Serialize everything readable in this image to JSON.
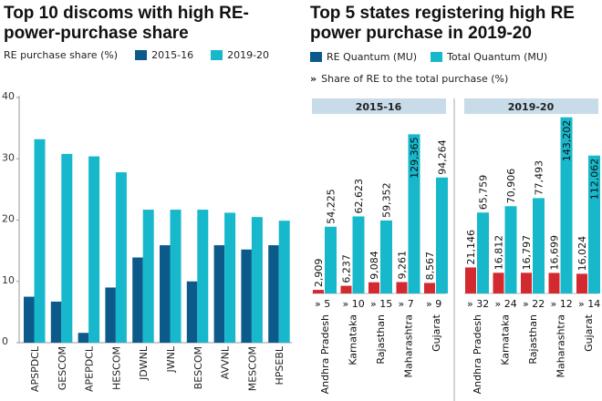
{
  "colors": {
    "dark": "#0b5a8a",
    "cyan": "#17b8cc",
    "red": "#d32a30",
    "header": "#c8dbe9"
  },
  "chart_data": [
    {
      "type": "bar",
      "title": "Top 10 discoms with high RE-power-purchase share",
      "ylabel": "RE purchase share (%)",
      "ylim": [
        0,
        40
      ],
      "yticks": [
        0,
        10,
        20,
        30,
        40
      ],
      "categories": [
        "APSPDCL",
        "GESCOM",
        "APEPDCL",
        "HESCOM",
        "JDWNL",
        "JWNL",
        "BESCOM",
        "AVVNL",
        "MESCOM",
        "HPSEBL"
      ],
      "series": [
        {
          "name": "2015-16",
          "color": "#0b5a8a",
          "values": [
            7.5,
            6.7,
            1.6,
            9.0,
            13.9,
            15.9,
            10.0,
            15.9,
            15.2,
            15.9
          ]
        },
        {
          "name": "2019-20",
          "color": "#17b8cc",
          "values": [
            33.2,
            30.8,
            30.4,
            27.8,
            21.7,
            21.7,
            21.7,
            21.2,
            20.5,
            19.9
          ]
        }
      ],
      "legend": "top"
    },
    {
      "type": "bar",
      "title": "Top 5 states registering high RE power purchase in 2019-20",
      "legend_share": "Share of RE to the total purchase (%)",
      "series_names": [
        "RE Quantum (MU)",
        "Total Quantum (MU)"
      ],
      "panels": [
        {
          "label": "2015-16",
          "categories": [
            "Andhra Pradesh",
            "Karnataka",
            "Rajasthan",
            "Maharashtra",
            "Gujarat"
          ],
          "re": [
            2909,
            6237,
            9084,
            9261,
            8567
          ],
          "re_labels": [
            "2,909",
            "6,237",
            "9,084",
            "9,261",
            "8,567"
          ],
          "total": [
            54225,
            62623,
            59352,
            129365,
            94264
          ],
          "total_labels": [
            "54,225",
            "62,623",
            "59,352",
            "129,365",
            "94,264"
          ],
          "share": [
            "5",
            "10",
            "15",
            "7",
            "9"
          ]
        },
        {
          "label": "2019-20",
          "categories": [
            "Andhra Pradesh",
            "Karnataka",
            "Rajasthan",
            "Maharashtra",
            "Gujarat"
          ],
          "re": [
            21146,
            16812,
            16797,
            16699,
            16024
          ],
          "re_labels": [
            "21,146",
            "16,812",
            "16,797",
            "16,699",
            "16,024"
          ],
          "total": [
            65759,
            70906,
            77493,
            143202,
            112062
          ],
          "total_labels": [
            "65,759",
            "70,906",
            "77,493",
            "143,202",
            "112,062"
          ],
          "share": [
            "32",
            "24",
            "22",
            "12",
            "14"
          ]
        }
      ]
    }
  ]
}
